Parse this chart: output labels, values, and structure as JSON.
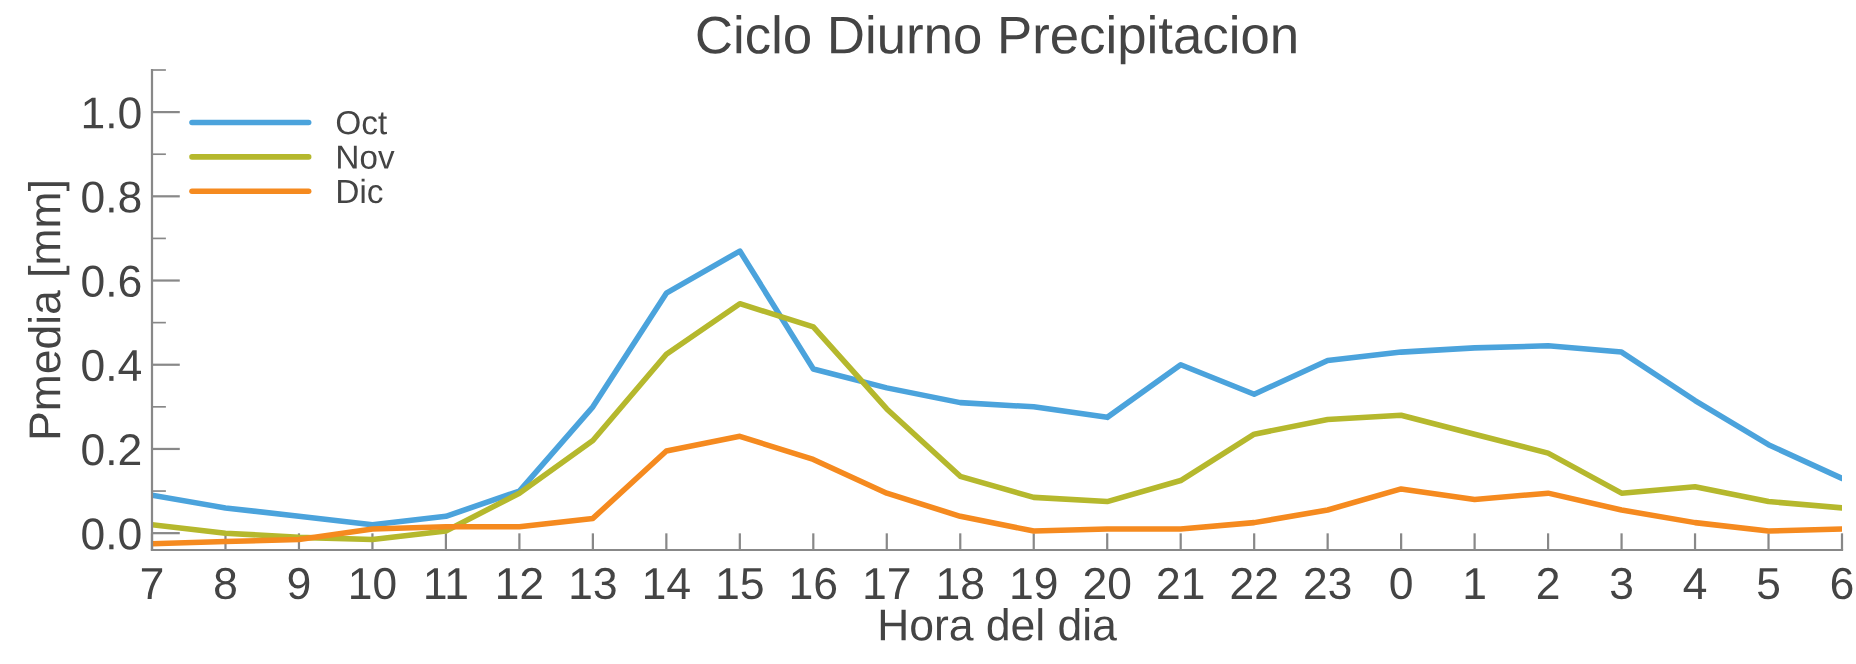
{
  "chart_data": {
    "type": "line",
    "title": "Ciclo Diurno Precipitacion",
    "xlabel": "Hora del dia",
    "ylabel": "Pmedia [mm]",
    "categories": [
      "7",
      "8",
      "9",
      "10",
      "11",
      "12",
      "13",
      "14",
      "15",
      "16",
      "17",
      "18",
      "19",
      "20",
      "21",
      "22",
      "23",
      "0",
      "1",
      "2",
      "3",
      "4",
      "5",
      "6"
    ],
    "series": [
      {
        "name": "Oct",
        "color": "#4ba3dc",
        "values": [
          0.09,
          0.06,
          0.04,
          0.02,
          0.04,
          0.1,
          0.3,
          0.57,
          0.67,
          0.39,
          0.345,
          0.31,
          0.3,
          0.275,
          0.4,
          0.33,
          0.41,
          0.43,
          0.44,
          0.445,
          0.43,
          0.315,
          0.21,
          0.13
        ]
      },
      {
        "name": "Nov",
        "color": "#b5b82d",
        "values": [
          0.02,
          0.0,
          -0.01,
          -0.015,
          0.005,
          0.095,
          0.22,
          0.425,
          0.545,
          0.49,
          0.295,
          0.135,
          0.085,
          0.075,
          0.125,
          0.235,
          0.27,
          0.28,
          0.235,
          0.19,
          0.095,
          0.11,
          0.075,
          0.06
        ]
      },
      {
        "name": "Dic",
        "color": "#f58a1f",
        "values": [
          -0.025,
          -0.02,
          -0.015,
          0.01,
          0.015,
          0.015,
          0.035,
          0.195,
          0.23,
          0.175,
          0.095,
          0.04,
          0.005,
          0.01,
          0.01,
          0.025,
          0.055,
          0.105,
          0.08,
          0.095,
          0.055,
          0.025,
          0.005,
          0.01
        ]
      }
    ],
    "ylim": [
      -0.04,
      1.1
    ],
    "yticks": [
      {
        "value": 0,
        "label": "0.0"
      },
      {
        "value": 0.2,
        "label": "0.2"
      },
      {
        "value": 0.4,
        "label": "0.4"
      },
      {
        "value": 0.6,
        "label": "0.6"
      },
      {
        "value": 0.8,
        "label": "0.8"
      },
      {
        "value": 1.0,
        "label": "1.0"
      }
    ],
    "legend": "top left",
    "grid": false,
    "marker": "none",
    "line_style": "solid"
  }
}
